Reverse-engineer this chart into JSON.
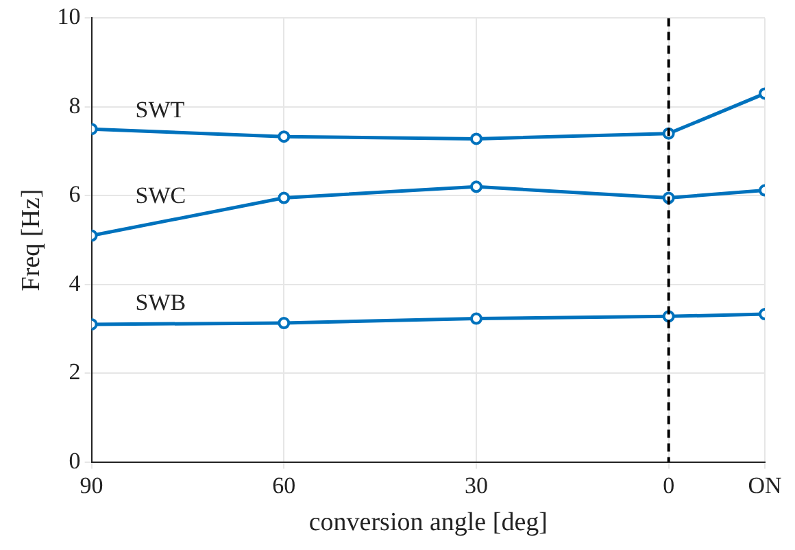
{
  "chart_data": {
    "type": "line",
    "xlabel": "conversion angle [deg]",
    "ylabel": "Freq [Hz]",
    "x": [
      90,
      60,
      30,
      0,
      -15
    ],
    "series": [
      {
        "name": "SWT",
        "color": "#0072bd",
        "values": [
          7.5,
          7.33,
          7.28,
          7.4,
          8.3
        ]
      },
      {
        "name": "SWC",
        "color": "#0072bd",
        "values": [
          5.1,
          5.95,
          6.2,
          5.95,
          6.12
        ]
      },
      {
        "name": "SWB",
        "color": "#0072bd",
        "values": [
          3.1,
          3.13,
          3.23,
          3.28,
          3.33
        ]
      }
    ],
    "xlim": [
      90,
      -15
    ],
    "xticks": [
      90,
      60,
      30,
      0,
      {
        "value": -15,
        "label": "ON"
      }
    ],
    "ylim": [
      0,
      10
    ],
    "yticks": [
      0,
      2,
      4,
      6,
      8,
      10
    ],
    "ref_lines": [
      {
        "axis": "x",
        "value": 0,
        "color": "#000000",
        "line_style": "dashed"
      }
    ],
    "grid": true,
    "legend": false,
    "marker": "circle",
    "line_style": "solid"
  }
}
